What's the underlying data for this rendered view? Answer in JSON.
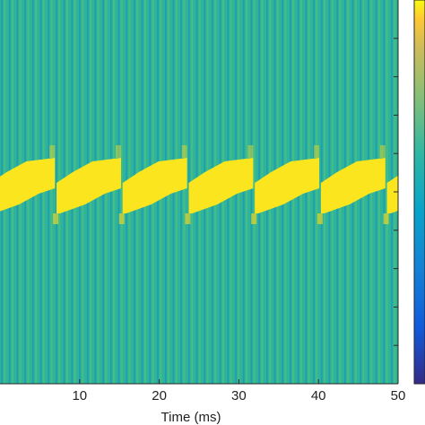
{
  "chart_data": {
    "type": "heatmap",
    "title": "",
    "xlabel": "Time (ms)",
    "ylabel": "",
    "xlim": [
      0,
      50
    ],
    "xticks": [
      {
        "value": 10,
        "label": "10"
      },
      {
        "value": 20,
        "label": "20"
      },
      {
        "value": 30,
        "label": "30"
      },
      {
        "value": 40,
        "label": "40"
      },
      {
        "value": 50,
        "label": "50"
      }
    ],
    "pulse_period_ms": 8.33,
    "pulse_starts_ms": [
      -1.2,
      7.1,
      15.4,
      23.7,
      32.0,
      40.3,
      48.6
    ],
    "colormap": "parula",
    "colorbar": true,
    "colors": {
      "background": "#2db49a",
      "stripe_dark": "#1f98b5",
      "stripe_light": "#57c27a",
      "pulse": "#fbe51e",
      "pulse_edge": "#e6d627",
      "colorbar_low": "#352a87",
      "colorbar_high": "#f9fb0e"
    }
  }
}
